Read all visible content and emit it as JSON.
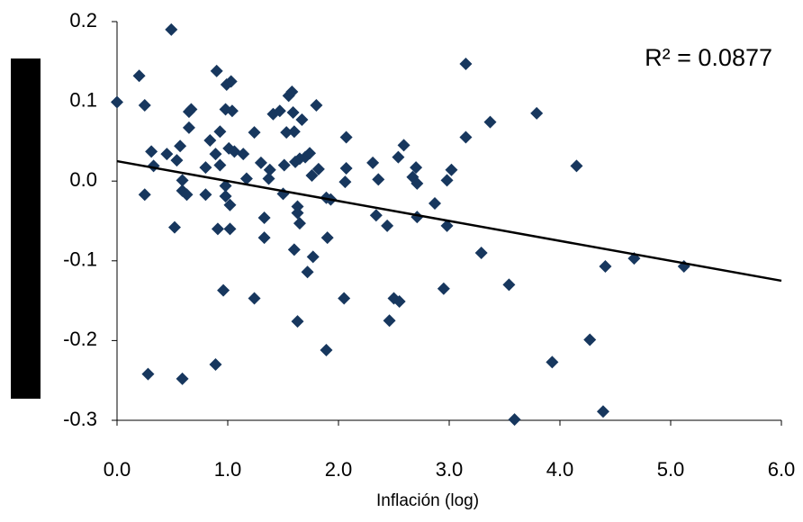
{
  "chart_data": {
    "type": "scatter",
    "x_label": "Inflación (log)",
    "annotation": "R² = 0.0877",
    "color": "#17375e",
    "xlim": [
      0,
      6
    ],
    "ylim": [
      -0.3,
      0.2
    ],
    "xticks": [
      {
        "value": 0,
        "label": "0.0"
      },
      {
        "value": 1,
        "label": "1.0"
      },
      {
        "value": 2,
        "label": "2.0"
      },
      {
        "value": 3,
        "label": "3.0"
      },
      {
        "value": 4,
        "label": "4.0"
      },
      {
        "value": 5,
        "label": "5.0"
      },
      {
        "value": 6,
        "label": "6.0"
      }
    ],
    "yticks": [
      0.2,
      0.1,
      {
        "value": 0,
        "label": "0.0"
      },
      -0.1,
      -0.2,
      -0.3
    ],
    "trendline": {
      "x": [
        0,
        6
      ],
      "y": [
        0.025,
        -0.125
      ]
    },
    "x": [
      0,
      0.49,
      0.2,
      0.25,
      0.25,
      0.31,
      0.33,
      0.45,
      0.52,
      0.54,
      0.57,
      0.59,
      0.59,
      0.63,
      0.65,
      0.65,
      0.67,
      0.8,
      0.8,
      0.84,
      0.9,
      0.89,
      0.93,
      0.93,
      0.91,
      0.98,
      0.99,
      1.03,
      1.01,
      1.06,
      0.98,
      0.98,
      1.02,
      1.02,
      1.14,
      0.96,
      0.89,
      0.28,
      0.59,
      1.04,
      1.17,
      1.24,
      1.3,
      1.33,
      1.33,
      1.37,
      1.38,
      1.41,
      1.47,
      1.5,
      1.51,
      1.53,
      1.55,
      1.58,
      1.59,
      1.6,
      1.61,
      1.6,
      1.63,
      1.24,
      1.63,
      1.63,
      1.65,
      1.65,
      1.67,
      1.7,
      1.72,
      1.74,
      1.76,
      1.77,
      1.8,
      1.82,
      1.89,
      1.9,
      1.93,
      1.89,
      2.06,
      2.07,
      2.07,
      2.05,
      2.31,
      2.34,
      2.36,
      2.44,
      2.46,
      2.5,
      2.54,
      2.55,
      2.59,
      2.67,
      2.7,
      2.71,
      2.71,
      2.87,
      2.95,
      2.98,
      2.98,
      3.02,
      3.15,
      3.15,
      3.29,
      3.37,
      3.54,
      3.59,
      3.79,
      3.93,
      4.15,
      4.27,
      4.41,
      4.39,
      4.67,
      5.12
    ],
    "values": [
      0.099,
      0.19,
      0.132,
      0.095,
      -0.017,
      0.037,
      0.019,
      0.034,
      -0.058,
      0.026,
      0.044,
      0.001,
      -0.012,
      -0.017,
      0.067,
      0.087,
      0.09,
      -0.017,
      0.017,
      0.051,
      0.138,
      0.034,
      0.02,
      0.062,
      -0.06,
      0.09,
      0.121,
      0.125,
      0.041,
      0.037,
      -0.006,
      -0.019,
      -0.03,
      -0.06,
      0.034,
      -0.137,
      -0.23,
      -0.242,
      -0.248,
      0.088,
      0.003,
      0.061,
      0.023,
      -0.046,
      -0.071,
      0.003,
      0.014,
      0.084,
      0.088,
      -0.016,
      0.02,
      0.061,
      0.107,
      0.112,
      0.086,
      0.062,
      0.024,
      -0.086,
      -0.176,
      -0.147,
      -0.032,
      -0.04,
      -0.053,
      0.028,
      0.077,
      0.03,
      -0.114,
      0.035,
      0.007,
      -0.095,
      0.095,
      0.015,
      -0.021,
      -0.071,
      -0.023,
      -0.212,
      -0.001,
      0.016,
      0.055,
      -0.147,
      0.023,
      -0.043,
      0.002,
      -0.056,
      -0.175,
      -0.147,
      0.03,
      -0.151,
      0.045,
      0.005,
      0.017,
      -0.003,
      -0.045,
      -0.028,
      -0.135,
      0.001,
      -0.056,
      0.014,
      0.055,
      0.147,
      -0.09,
      0.074,
      -0.13,
      -0.299,
      0.085,
      -0.227,
      0.019,
      -0.199,
      -0.107,
      -0.289,
      -0.097,
      -0.107
    ]
  }
}
